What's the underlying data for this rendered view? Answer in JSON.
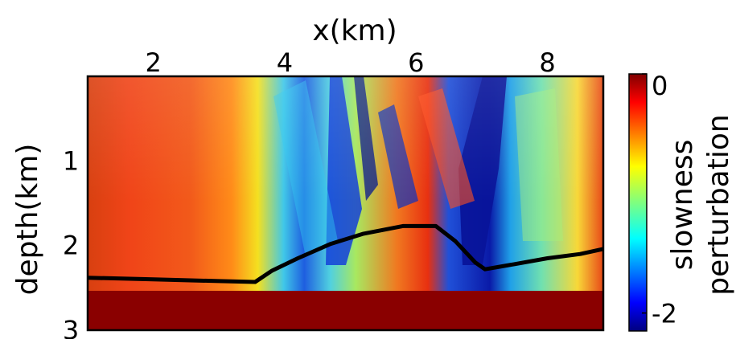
{
  "chart_data": {
    "type": "heatmap",
    "title": "",
    "xlabel": "x(km)",
    "ylabel": "depth(km)",
    "xlim": [
      1.0,
      8.85
    ],
    "ylim": [
      3.0,
      0.0
    ],
    "x_ticks": [
      2,
      4,
      6,
      8
    ],
    "x_tick_labels": [
      "2",
      "4",
      "6",
      "8"
    ],
    "y_ticks": [
      1,
      2,
      3
    ],
    "y_tick_labels": [
      "1",
      "2",
      "3"
    ],
    "x_axis_position": "top",
    "colorbar": {
      "colormap": "jet",
      "label_lines": [
        "slowness",
        "perturbation"
      ],
      "ticks": [
        0,
        -2
      ],
      "tick_labels": [
        "0",
        "-2"
      ],
      "range": [
        -2.15,
        0
      ]
    },
    "series": [
      {
        "type": "line",
        "color": "#000000",
        "x": [
          1.0,
          2.0,
          3.0,
          3.55,
          3.8,
          4.2,
          4.7,
          5.2,
          5.8,
          6.3,
          6.6,
          6.9,
          7.05,
          7.5,
          8.0,
          8.5,
          8.85
        ],
        "y": [
          2.38,
          2.4,
          2.42,
          2.43,
          2.3,
          2.15,
          1.98,
          1.86,
          1.77,
          1.77,
          1.95,
          2.2,
          2.28,
          2.22,
          2.15,
          2.1,
          2.04
        ]
      }
    ],
    "field_regions": [
      {
        "x0": 1.0,
        "x1": 3.3,
        "value": -0.1
      },
      {
        "x0": 3.3,
        "x1": 4.0,
        "value": -0.6
      },
      {
        "x0": 4.0,
        "x1": 4.8,
        "value": -1.4
      },
      {
        "x0": 4.8,
        "x1": 5.6,
        "value": -1.2
      },
      {
        "x0": 5.6,
        "x1": 6.3,
        "value": -0.4
      },
      {
        "x0": 6.3,
        "x1": 7.0,
        "value": -2.0
      },
      {
        "x0": 7.0,
        "x1": 8.85,
        "value": -1.0
      }
    ],
    "deep_layer": {
      "depth_top": 2.65,
      "value": 0.0
    },
    "grid": false
  }
}
